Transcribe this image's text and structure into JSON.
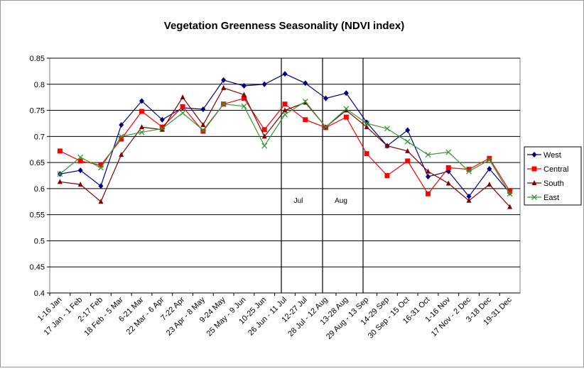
{
  "chart_data": {
    "type": "line",
    "title": "Vegetation Greenness Seasonality (NDVI index)",
    "categories": [
      "1-16 Jan",
      "17 Jan - 1 Feb",
      "2-17 Feb",
      "18 Feb - 5 Mar",
      "6-21 Mar",
      "22 Mar - 6 Apr",
      "7-22 Apr",
      "23 Apr - 8 May",
      "9-24 May",
      "25 May - 9 Jun",
      "10-25 Jun",
      "26 Jun - 11 Jul",
      "12-27 Jul",
      "28 Jul - 12 Aug",
      "13-28 Aug",
      "29 Aug - 13 Sep",
      "14-29 Sep",
      "30 Sep - 15 Oct",
      "16-31 Oct",
      "1-16 Nov",
      "17 Nov - 2 Dec",
      "3-18 Dec",
      "19-31 Dec"
    ],
    "series": [
      {
        "name": "West",
        "color": "#000080",
        "marker": "diamond",
        "values": [
          0.628,
          0.635,
          0.605,
          0.722,
          0.768,
          0.732,
          0.755,
          0.752,
          0.808,
          0.797,
          0.8,
          0.82,
          0.802,
          0.773,
          0.783,
          0.727,
          0.682,
          0.712,
          0.623,
          0.633,
          0.585,
          0.638,
          0.592
        ]
      },
      {
        "name": "Central",
        "color": "#ff0000",
        "marker": "square",
        "values": [
          0.672,
          0.653,
          0.645,
          0.695,
          0.748,
          0.718,
          0.757,
          0.71,
          0.762,
          0.773,
          0.713,
          0.762,
          0.732,
          0.717,
          0.737,
          0.667,
          0.625,
          0.653,
          0.59,
          0.64,
          0.637,
          0.658,
          0.595
        ]
      },
      {
        "name": "South",
        "color": "#800000",
        "marker": "triangle",
        "values": [
          0.613,
          0.608,
          0.575,
          0.665,
          0.718,
          0.713,
          0.775,
          0.722,
          0.793,
          0.78,
          0.7,
          0.75,
          0.765,
          0.718,
          0.75,
          0.718,
          0.682,
          0.672,
          0.633,
          0.61,
          0.577,
          0.608,
          0.565
        ]
      },
      {
        "name": "East",
        "color": "#339933",
        "marker": "x",
        "values": [
          0.628,
          0.66,
          0.64,
          0.7,
          0.708,
          0.715,
          0.745,
          0.712,
          0.762,
          0.758,
          0.682,
          0.742,
          0.767,
          0.718,
          0.753,
          0.725,
          0.715,
          0.69,
          0.665,
          0.67,
          0.633,
          0.655,
          0.59
        ]
      }
    ],
    "annotations": [
      "Jul",
      "Aug"
    ],
    "ylim": [
      0.4,
      0.85
    ],
    "yticks": [
      0.4,
      0.45,
      0.5,
      0.55,
      0.6,
      0.65,
      0.7,
      0.75,
      0.8,
      0.85
    ],
    "grid": true,
    "legend": "right"
  }
}
